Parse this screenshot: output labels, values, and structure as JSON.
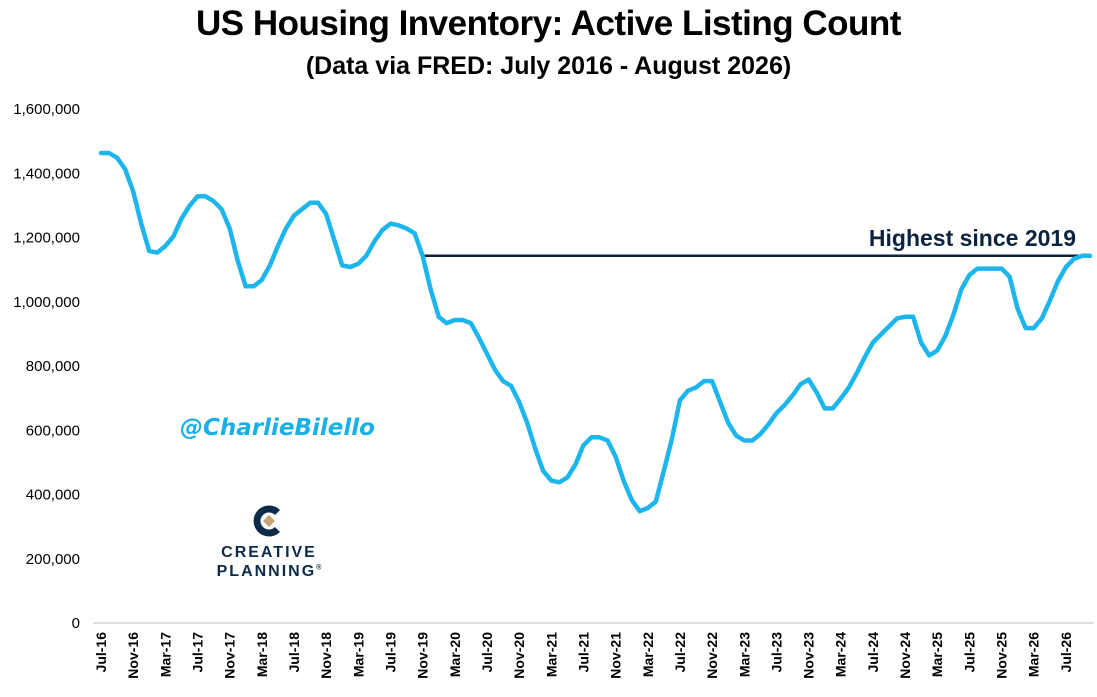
{
  "title": "US Housing Inventory: Active Listing Count",
  "subtitle": "(Data via FRED: July 2016 - August 2026)",
  "watermark": "@CharlieBilello",
  "logo": {
    "line1": "CREATIVE",
    "line2": "PLANNING",
    "mark": "®"
  },
  "colors": {
    "series": "#1cb5ec",
    "annotation": "#0c2340",
    "handle": "#1ab0e6"
  },
  "chart_data": {
    "type": "line",
    "title": "US Housing Inventory: Active Listing Count",
    "subtitle": "(Data via FRED: July 2016 - August 2026)",
    "xlabel": "",
    "ylabel": "",
    "ylim": [
      0,
      1600000
    ],
    "yticks": [
      0,
      200000,
      400000,
      600000,
      800000,
      1000000,
      1200000,
      1400000,
      1600000
    ],
    "ytick_labels": [
      "0",
      "200,000",
      "400,000",
      "600,000",
      "800,000",
      "1,000,000",
      "1,200,000",
      "1,400,000",
      "1,600,000"
    ],
    "x_tick_labels": [
      "Jul-16",
      "Nov-16",
      "Mar-17",
      "Jul-17",
      "Nov-17",
      "Mar-18",
      "Jul-18",
      "Nov-18",
      "Mar-19",
      "Jul-19",
      "Nov-19",
      "Mar-20",
      "Jul-20",
      "Nov-20",
      "Mar-21",
      "Jul-21",
      "Nov-21",
      "Mar-22",
      "Jul-22",
      "Nov-22",
      "Mar-23",
      "Jul-23",
      "Nov-23",
      "Mar-24",
      "Jul-24",
      "Nov-24",
      "Mar-25",
      "Jul-25",
      "Nov-25",
      "Mar-26",
      "Jul-26"
    ],
    "grid": false,
    "legend": "none",
    "annotation": {
      "label": "Highest since 2019",
      "value": 1140000,
      "from": "Nov-19",
      "to": "Aug-26"
    },
    "x_start": "2016-07",
    "x_frequency": "monthly",
    "series": [
      {
        "values": [
          1460000,
          1460000,
          1445000,
          1410000,
          1340000,
          1240000,
          1155000,
          1150000,
          1170000,
          1200000,
          1255000,
          1295000,
          1325000,
          1325000,
          1310000,
          1285000,
          1225000,
          1125000,
          1045000,
          1045000,
          1065000,
          1110000,
          1170000,
          1225000,
          1265000,
          1285000,
          1305000,
          1305000,
          1270000,
          1190000,
          1110000,
          1105000,
          1115000,
          1140000,
          1185000,
          1220000,
          1240000,
          1235000,
          1225000,
          1210000,
          1140000,
          1035000,
          950000,
          930000,
          940000,
          940000,
          930000,
          885000,
          835000,
          785000,
          750000,
          735000,
          685000,
          620000,
          540000,
          470000,
          440000,
          435000,
          450000,
          490000,
          550000,
          575000,
          575000,
          565000,
          515000,
          440000,
          380000,
          345000,
          355000,
          375000,
          470000,
          570000,
          690000,
          720000,
          730000,
          750000,
          750000,
          685000,
          620000,
          580000,
          565000,
          565000,
          585000,
          615000,
          650000,
          675000,
          705000,
          740000,
          755000,
          715000,
          665000,
          665000,
          695000,
          730000,
          775000,
          825000,
          870000,
          895000,
          920000,
          945000,
          950000,
          950000,
          870000,
          830000,
          845000,
          890000,
          955000,
          1035000,
          1080000,
          1100000,
          1100000,
          1100000,
          1100000,
          1075000,
          975000,
          915000,
          915000,
          945000,
          1000000,
          1060000,
          1105000,
          1130000,
          1140000,
          1140000
        ]
      }
    ]
  }
}
